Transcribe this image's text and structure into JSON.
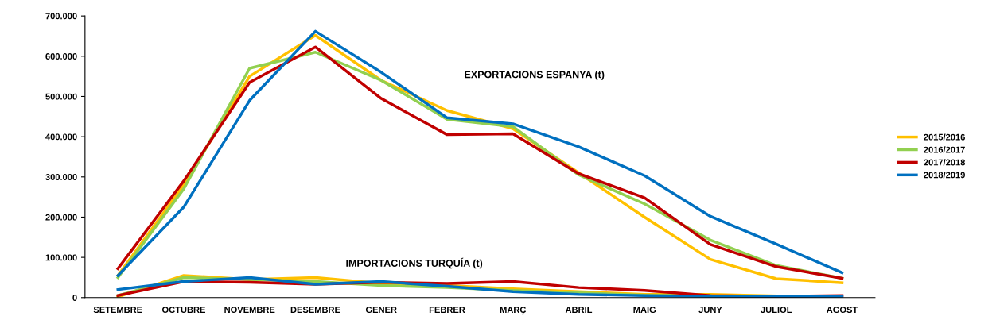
{
  "chart_data": {
    "type": "line",
    "categories": [
      "SETEMBRE",
      "OCTUBRE",
      "NOVEMBRE",
      "DESEMBRE",
      "GENER",
      "FEBRER",
      "MARÇ",
      "ABRIL",
      "MAIG",
      "JUNY",
      "JULIOL",
      "AGOST"
    ],
    "series": [
      {
        "name": "2015/2016",
        "color": "#ffc000",
        "values": [
          55000,
          280000,
          550000,
          652000,
          540000,
          465000,
          420000,
          310000,
          200000,
          95000,
          47000,
          37000
        ]
      },
      {
        "name": "2016/2017",
        "color": "#92d050",
        "values": [
          50000,
          270000,
          570000,
          610000,
          540000,
          443000,
          425000,
          305000,
          233000,
          143000,
          80000,
          48000
        ]
      },
      {
        "name": "2017/2018",
        "color": "#c00000",
        "values": [
          72000,
          290000,
          535000,
          623000,
          495000,
          405000,
          407000,
          308000,
          248000,
          132000,
          77000,
          48000
        ]
      },
      {
        "name": "2018/2019",
        "color": "#0070c0",
        "values": [
          55000,
          225000,
          490000,
          662000,
          560000,
          447000,
          432000,
          375000,
          303000,
          202000,
          133000,
          62000
        ]
      },
      {
        "color": "#ffc000",
        "values": [
          2000,
          55000,
          45000,
          50000,
          35000,
          30000,
          22000,
          15000,
          8000,
          8000,
          4000,
          null
        ]
      },
      {
        "color": "#92d050",
        "values": [
          5000,
          50000,
          45000,
          40000,
          30000,
          25000,
          18000,
          12000,
          6000,
          5000,
          null,
          null
        ]
      },
      {
        "color": "#c00000",
        "values": [
          5000,
          40000,
          38000,
          33000,
          38000,
          35000,
          40000,
          25000,
          18000,
          5000,
          3000,
          5000
        ]
      },
      {
        "color": "#0070c0",
        "values": [
          20000,
          40000,
          50000,
          33000,
          40000,
          28000,
          15000,
          8000,
          5000,
          3000,
          2000,
          2000
        ]
      }
    ],
    "ylim": [
      0,
      700000
    ],
    "yticks": [
      {
        "value": 0,
        "label": "0"
      },
      {
        "value": 100000,
        "label": "100.000"
      },
      {
        "value": 200000,
        "label": "200.000"
      },
      {
        "value": 300000,
        "label": "300.000"
      },
      {
        "value": 400000,
        "label": "400.000"
      },
      {
        "value": 500000,
        "label": "500.000"
      },
      {
        "value": 600000,
        "label": "600.000"
      },
      {
        "value": 700000,
        "label": "700.000"
      }
    ],
    "annotations": [
      "EXPORTACIONS ESPANYA (t)",
      "IMPORTACIONS TURQUÍA (t)"
    ],
    "legend": "right",
    "grid": false,
    "marker": "none",
    "line_style": "solid"
  }
}
